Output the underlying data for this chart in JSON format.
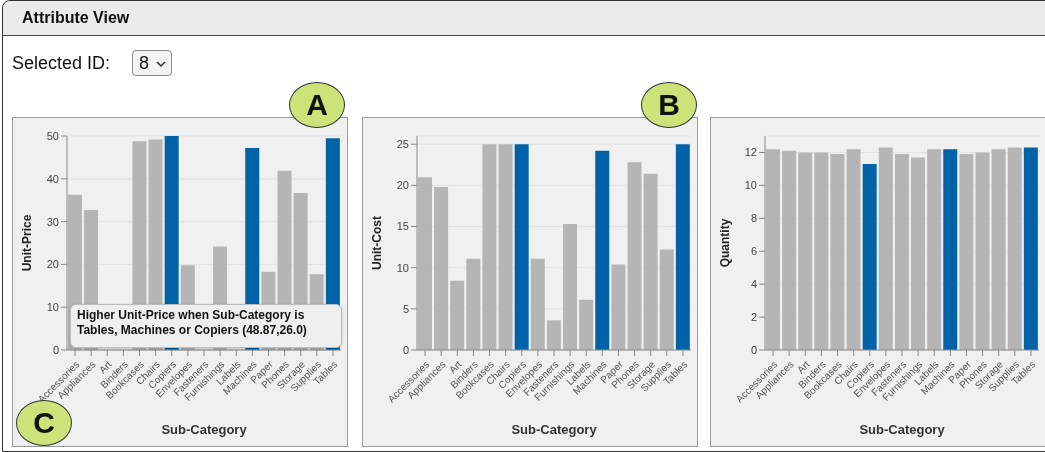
{
  "chart_data": [
    {
      "type": "bar",
      "ylabel": "Unit-Price",
      "xlabel": "Sub-Category",
      "categories": [
        "Accessories",
        "Appliances",
        "Art",
        "Binders",
        "Bookcases",
        "Chairs",
        "Copiers",
        "Envelopes",
        "Fasteners",
        "Furnishings",
        "Labels",
        "Machines",
        "Paper",
        "Phones",
        "Storage",
        "Supplies",
        "Tables"
      ],
      "values": [
        36.3,
        32.7,
        null,
        null,
        48.8,
        49.2,
        50.0,
        19.8,
        null,
        24.2,
        null,
        47.2,
        18.3,
        41.9,
        36.7,
        17.7,
        49.5
      ],
      "colors": [
        "#b5b5b5",
        "#b5b5b5",
        "#b5b5b5",
        "#b5b5b5",
        "#b5b5b5",
        "#b5b5b5",
        "#0063a8",
        "#b5b5b5",
        "#b5b5b5",
        "#b5b5b5",
        "#b5b5b5",
        "#0063a8",
        "#b5b5b5",
        "#b5b5b5",
        "#b5b5b5",
        "#b5b5b5",
        "#0063a8"
      ],
      "ylim": [
        0,
        50
      ],
      "yticks": [
        0,
        10,
        20,
        30,
        40,
        50
      ],
      "grid": "y",
      "annotations": [
        "Attribute View",
        "Selected ID:",
        "8",
        "A",
        "C",
        "Higher Unit-Price when Sub-Category is Tables, Machines or Copiers (48.87,26.0)"
      ]
    },
    {
      "type": "bar",
      "ylabel": "Unit-Cost",
      "xlabel": "Sub-Category",
      "categories": [
        "Accessories",
        "Appliances",
        "Art",
        "Binders",
        "Bookcases",
        "Chairs",
        "Copiers",
        "Envelopes",
        "Fasteners",
        "Furnishings",
        "Labels",
        "Machines",
        "Paper",
        "Phones",
        "Storage",
        "Supplies",
        "Tables"
      ],
      "values": [
        21.0,
        19.8,
        8.4,
        11.1,
        25.0,
        25.0,
        25.0,
        11.1,
        3.6,
        15.3,
        6.1,
        24.2,
        10.4,
        22.8,
        21.4,
        12.2,
        25.0
      ],
      "colors": [
        "#b5b5b5",
        "#b5b5b5",
        "#b5b5b5",
        "#b5b5b5",
        "#b5b5b5",
        "#b5b5b5",
        "#0063a8",
        "#b5b5b5",
        "#b5b5b5",
        "#b5b5b5",
        "#b5b5b5",
        "#0063a8",
        "#b5b5b5",
        "#b5b5b5",
        "#b5b5b5",
        "#b5b5b5",
        "#0063a8"
      ],
      "ylim": [
        0,
        26
      ],
      "yticks": [
        0,
        5,
        10,
        15,
        20,
        25
      ],
      "grid": "y",
      "annotations": [
        "B"
      ]
    },
    {
      "type": "bar",
      "ylabel": "Quantity",
      "xlabel": "Sub-Category",
      "categories": [
        "Accessories",
        "Appliances",
        "Art",
        "Binders",
        "Bookcases",
        "Chairs",
        "Copiers",
        "Envelopes",
        "Fasteners",
        "Furnishings",
        "Labels",
        "Machines",
        "Paper",
        "Phones",
        "Storage",
        "Supplies",
        "Tables"
      ],
      "values": [
        12.2,
        12.1,
        12.0,
        12.0,
        11.9,
        12.2,
        11.3,
        12.3,
        11.9,
        11.7,
        12.2,
        12.2,
        11.9,
        12.0,
        12.2,
        12.3,
        12.3
      ],
      "colors": [
        "#b5b5b5",
        "#b5b5b5",
        "#b5b5b5",
        "#b5b5b5",
        "#b5b5b5",
        "#b5b5b5",
        "#0063a8",
        "#b5b5b5",
        "#b5b5b5",
        "#b5b5b5",
        "#b5b5b5",
        "#0063a8",
        "#b5b5b5",
        "#b5b5b5",
        "#b5b5b5",
        "#b5b5b5",
        "#0063a8"
      ],
      "ylim": [
        0,
        13
      ],
      "yticks": [
        0,
        2,
        4,
        6,
        8,
        10,
        12
      ],
      "grid": "y"
    }
  ]
}
